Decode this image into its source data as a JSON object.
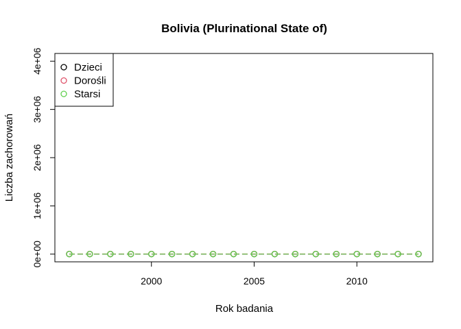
{
  "chart_data": {
    "type": "line",
    "title": "Bolivia (Plurinational State of)",
    "xlabel": "Rok badania",
    "ylabel": "Liczba zachorowań",
    "x": [
      1996,
      1997,
      1998,
      1999,
      2000,
      2001,
      2002,
      2003,
      2004,
      2005,
      2006,
      2007,
      2008,
      2009,
      2010,
      2011,
      2012,
      2013
    ],
    "xlim": [
      1995.3,
      2013.7
    ],
    "ylim": [
      -160000,
      4160000
    ],
    "x_ticks": [
      2000,
      2005,
      2010
    ],
    "x_tick_labels": [
      "2000",
      "2005",
      "2010"
    ],
    "y_ticks": [
      0,
      1000000,
      2000000,
      3000000,
      4000000
    ],
    "y_tick_labels": [
      "0e+00",
      "1e+06",
      "2e+06",
      "3e+06",
      "4e+06"
    ],
    "grid": false,
    "legend_position": "top-left",
    "series": [
      {
        "name": "Dzieci",
        "color": "#000000",
        "values": [
          2000,
          2000,
          2000,
          2000,
          2000,
          2000,
          2000,
          2000,
          2000,
          2000,
          2000,
          2000,
          2000,
          2000,
          2000,
          2000,
          2000,
          2000
        ]
      },
      {
        "name": "Dorośli",
        "color": "#df536b",
        "values": [
          3000,
          3000,
          3000,
          3000,
          3000,
          3000,
          3000,
          3000,
          3000,
          3000,
          3000,
          3000,
          3000,
          3000,
          3000,
          3000,
          3000,
          3000
        ]
      },
      {
        "name": "Starsi",
        "color": "#61d04f",
        "values": [
          1000,
          1000,
          1000,
          1000,
          1000,
          1000,
          1000,
          1000,
          1000,
          1000,
          1000,
          1000,
          1000,
          1000,
          1000,
          1000,
          1000,
          1000
        ]
      }
    ]
  }
}
